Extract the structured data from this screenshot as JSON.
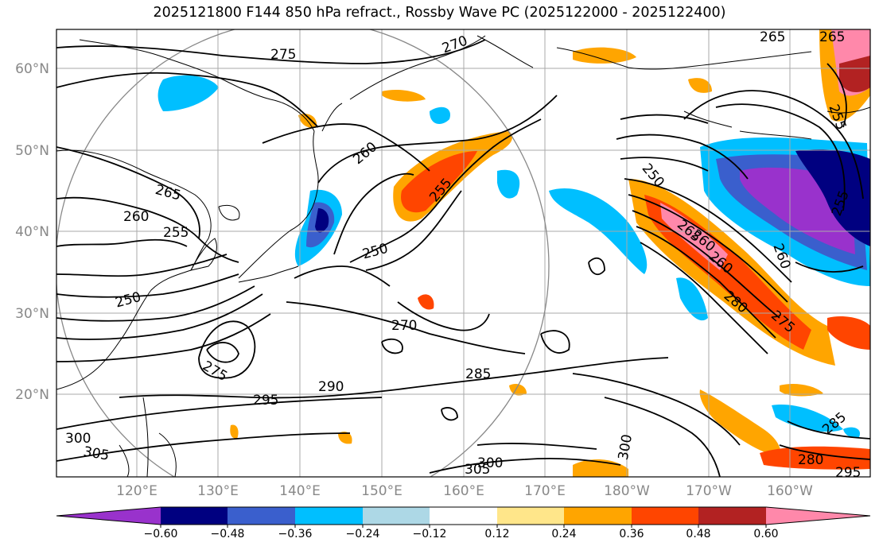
{
  "title": "2025121800 F144 850 hPa refract., Rossby Wave PC (2025122000 - 2025122400)",
  "lat_labels": [
    "60°N",
    "50°N",
    "40°N",
    "30°N",
    "20°N"
  ],
  "lon_labels": [
    "120°E",
    "130°E",
    "140°E",
    "150°E",
    "160°E",
    "170°E",
    "180°W",
    "170°W",
    "160°W"
  ],
  "contour_labels": [
    "275",
    "270",
    "265",
    "260",
    "265",
    "260",
    "255",
    "250",
    "260",
    "255",
    "250",
    "270",
    "285",
    "290",
    "295",
    "275",
    "300",
    "305",
    "305",
    "300",
    "300",
    "250",
    "265",
    "260",
    "255",
    "255",
    "260",
    "280",
    "275",
    "285",
    "280",
    "295",
    "265"
  ],
  "colorbar": {
    "colors": [
      "#9932CC",
      "#000080",
      "#3A5FCD",
      "#00BFFF",
      "#ADD8E6",
      "#FFFFFF",
      "#FFE68A",
      "#FFA500",
      "#FF4500",
      "#B22222",
      "#FF88AA"
    ],
    "tick_labels": [
      "−0.60",
      "−0.48",
      "−0.36",
      "−0.24",
      "−0.12",
      "0.12",
      "0.24",
      "0.36",
      "0.48",
      "0.60"
    ]
  }
}
